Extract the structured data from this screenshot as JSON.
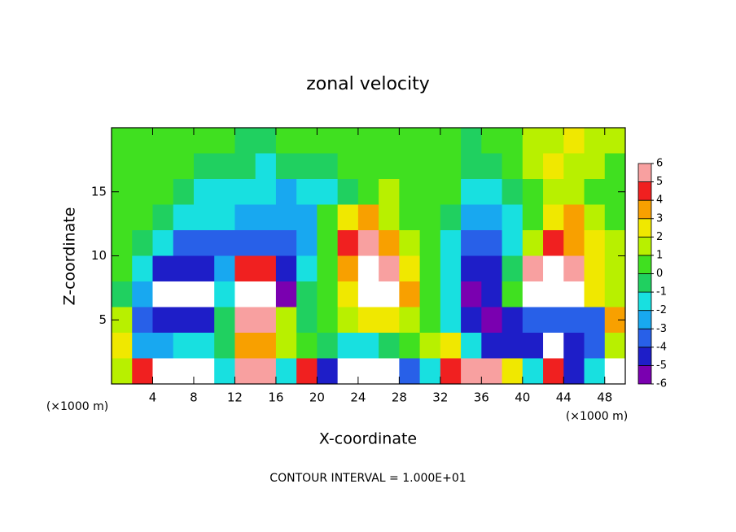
{
  "chart_data": {
    "type": "heatmap",
    "title": "zonal velocity",
    "x_label": "X-coordinate",
    "y_label": "Z-coordinate",
    "x_unit": "(×1000 m)",
    "y_unit": "(×1000 m)",
    "footer": "CONTOUR INTERVAL = 1.000E+01",
    "xlim": [
      0,
      50
    ],
    "ylim": [
      0,
      20
    ],
    "xticks": [
      4,
      8,
      12,
      16,
      20,
      24,
      28,
      32,
      36,
      40,
      44,
      48
    ],
    "yticks": [
      5,
      10,
      15
    ],
    "x": [
      1,
      3,
      5,
      7,
      9,
      11,
      13,
      15,
      17,
      19,
      21,
      23,
      25,
      27,
      29,
      31,
      33,
      35,
      37,
      39,
      41,
      43,
      45,
      47,
      49
    ],
    "y": [
      19,
      17,
      15,
      13,
      11,
      9,
      7,
      5,
      3,
      1
    ],
    "z": [
      [
        0.5,
        0.5,
        0.5,
        0.5,
        0.5,
        0.5,
        -0.5,
        -0.5,
        0.5,
        0.5,
        0.5,
        0.5,
        0.5,
        0.5,
        0.5,
        0.5,
        0.5,
        -0.5,
        0.5,
        0.5,
        1.5,
        1.5,
        2.5,
        1.5,
        1.5
      ],
      [
        0.5,
        0.5,
        0.5,
        0.5,
        -0.5,
        -0.5,
        -0.5,
        -1.5,
        -0.5,
        -0.5,
        -0.5,
        0.5,
        0.5,
        0.5,
        0.5,
        0.5,
        0.5,
        -0.5,
        -0.5,
        0.5,
        1.5,
        2.5,
        1.5,
        1.5,
        0.5
      ],
      [
        0.5,
        0.5,
        0.5,
        -0.5,
        -1.5,
        -1.5,
        -1.5,
        -1.5,
        -2.5,
        -1.5,
        -1.5,
        -0.5,
        0.5,
        1.5,
        0.5,
        0.5,
        0.5,
        -1.5,
        -1.5,
        -0.5,
        0.5,
        1.5,
        1.5,
        0.5,
        0.5
      ],
      [
        0.5,
        0.5,
        -0.5,
        -1.5,
        -1.5,
        -1.5,
        -2.5,
        -2.5,
        -2.5,
        -2.5,
        0.5,
        2.5,
        3.5,
        1.5,
        0.5,
        0.5,
        -0.5,
        -2.5,
        -2.5,
        -1.5,
        0.5,
        2.5,
        3.5,
        1.5,
        0.5
      ],
      [
        0.5,
        -0.5,
        -1.5,
        -3.5,
        -3.5,
        -3.5,
        -3.5,
        -3.5,
        -3.5,
        -2.5,
        0.5,
        4.5,
        5.5,
        3.5,
        1.5,
        0.5,
        -1.5,
        -3.5,
        -3.5,
        -1.5,
        1.5,
        4.5,
        3.5,
        2.5,
        1.5
      ],
      [
        0.5,
        -1.5,
        -4.5,
        -4.5,
        -4.5,
        -2.5,
        4.5,
        4.5,
        -4.5,
        -1.5,
        0.5,
        3.5,
        8,
        5.5,
        2.5,
        0.5,
        -1.5,
        -4.5,
        -4.5,
        -0.5,
        5.5,
        8,
        5.5,
        2.5,
        1.5
      ],
      [
        -0.5,
        -2.5,
        -8,
        -8,
        -8,
        -1.5,
        8,
        8,
        -5.5,
        -0.5,
        0.5,
        2.5,
        8,
        8,
        3.5,
        0.5,
        -1.5,
        -5.5,
        -4.5,
        0.5,
        8,
        8,
        8,
        2.5,
        1.5
      ],
      [
        1.5,
        -3.5,
        -4.5,
        -4.5,
        -4.5,
        -0.5,
        5.5,
        5.5,
        1.5,
        -0.5,
        0.5,
        1.5,
        2.5,
        2.5,
        1.5,
        0.5,
        -1.5,
        -4.5,
        -5.5,
        -4.5,
        -3.5,
        -3.5,
        -3.5,
        -3.5,
        3.5
      ],
      [
        2.5,
        -2.5,
        -2.5,
        -1.5,
        -1.5,
        -0.5,
        3.5,
        3.5,
        1.5,
        0.5,
        -0.5,
        -1.5,
        -1.5,
        -0.5,
        0.5,
        1.5,
        2.5,
        -1.5,
        -4.5,
        -4.5,
        -4.5,
        -8,
        -4.5,
        -3.5,
        1.5
      ],
      [
        1.5,
        4.5,
        -8,
        -8,
        -8,
        -1.5,
        5.5,
        5.5,
        -1.5,
        4.5,
        -4.5,
        -8,
        -8,
        -8,
        -3.5,
        -1.5,
        4.5,
        5.5,
        5.5,
        2.5,
        -1.5,
        4.5,
        -4.5,
        -1.5,
        -8
      ]
    ],
    "colorbar_levels": [
      -6,
      -5,
      -4,
      -3,
      -2,
      -1,
      0,
      1,
      2,
      3,
      4,
      5,
      6
    ],
    "colors": [
      "#7a00b0",
      "#1e1ec8",
      "#2860e8",
      "#18a8f0",
      "#18e0e0",
      "#20d060",
      "#40e020",
      "#b8f000",
      "#f0e800",
      "#f8a000",
      "#f02020",
      "#f8a0a0"
    ],
    "out_of_range_color": "#ffffff"
  }
}
